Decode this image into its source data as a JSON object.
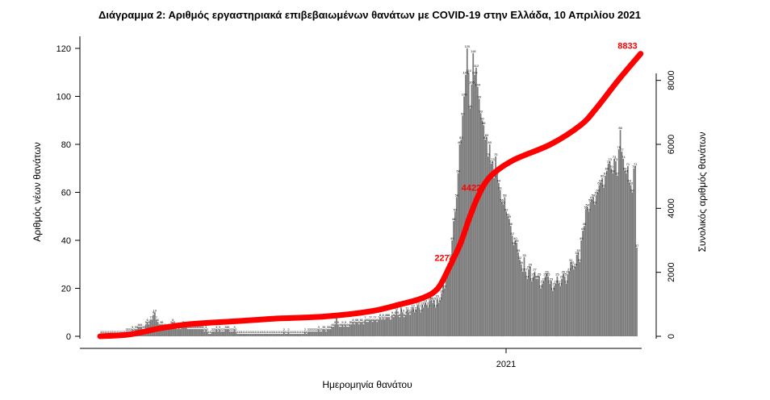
{
  "chart_data": {
    "type": "bar",
    "title": "Διάγραμμα 2: Αριθμός εργαστηριακά επιβεβαιωμένων θανάτων με COVID-19 στην Ελλάδα, 10 Απριλίου 2021",
    "xlabel": "Ημερομηνία θανάτου",
    "ylabel_left": "Αριθμός νέων θανάτων",
    "ylabel_right": "Συνολικός αριθμός θανάτων",
    "x_tick_labels": [
      "2021"
    ],
    "left_axis": {
      "ylim": [
        0,
        120
      ],
      "ticks": [
        0,
        20,
        40,
        60,
        80,
        100,
        120
      ]
    },
    "right_axis": {
      "ylim": [
        0,
        9000
      ],
      "ticks": [
        0,
        2000,
        4000,
        6000,
        8000
      ]
    },
    "series": [
      {
        "name": "",
        "type": "bar",
        "color": "#7a7a7a",
        "start_date": "2020-03-11",
        "values": [
          1,
          1,
          1,
          1,
          1,
          1,
          1,
          1,
          1,
          1,
          1,
          1,
          1,
          1,
          1,
          1,
          1,
          2,
          2,
          2,
          2,
          3,
          2,
          3,
          3,
          4,
          4,
          4,
          3,
          3,
          5,
          6,
          5,
          7,
          7,
          9,
          10,
          7,
          6,
          4,
          5,
          5,
          4,
          4,
          3,
          4,
          4,
          5,
          6,
          5,
          4,
          3,
          4,
          3,
          4,
          5,
          4,
          4,
          3,
          3,
          3,
          3,
          3,
          3,
          3,
          3,
          3,
          3,
          3,
          2,
          3,
          2,
          1,
          1,
          2,
          2,
          2,
          3,
          2,
          3,
          2,
          2,
          2,
          3,
          3,
          3,
          2,
          2,
          2,
          3,
          2,
          1,
          1,
          1,
          1,
          1,
          1,
          1,
          1,
          1,
          1,
          1,
          1,
          1,
          1,
          1,
          1,
          1,
          1,
          1,
          1,
          1,
          1,
          1,
          1,
          1,
          1,
          1,
          1,
          1,
          1,
          1,
          2,
          1,
          1,
          2,
          1,
          1,
          1,
          1,
          1,
          1,
          1,
          1,
          1,
          1,
          2,
          1,
          2,
          2,
          2,
          2,
          2,
          2,
          2,
          3,
          2,
          2,
          3,
          3,
          2,
          3,
          3,
          3,
          4,
          4,
          5,
          8,
          5,
          4,
          4,
          5,
          4,
          5,
          4,
          4,
          5,
          5,
          6,
          5,
          6,
          6,
          5,
          6,
          6,
          5,
          7,
          6,
          6,
          7,
          7,
          6,
          7,
          7,
          6,
          7,
          8,
          7,
          8,
          7,
          8,
          8,
          8,
          7,
          9,
          8,
          9,
          11,
          9,
          8,
          12,
          10,
          8,
          9,
          11,
          10,
          9,
          11,
          12,
          10,
          11,
          13,
          12,
          10,
          13,
          12,
          14,
          13,
          12,
          15,
          15,
          14,
          15,
          12,
          16,
          14,
          15,
          18,
          22,
          20,
          24,
          27,
          29,
          33,
          40,
          48,
          52,
          58,
          68,
          80,
          82,
          92,
          100,
          109,
          120,
          110,
          95,
          105,
          118,
          109,
          112,
          104,
          99,
          93,
          90,
          88,
          82,
          83,
          75,
          80,
          72,
          73,
          66,
          75,
          68,
          64,
          61,
          56,
          55,
          58,
          52,
          50,
          49,
          46,
          42,
          38,
          40,
          39,
          35,
          32,
          30,
          27,
          33,
          27,
          24,
          28,
          29,
          23,
          25,
          27,
          24,
          24,
          25,
          20,
          22,
          23,
          25,
          26,
          25,
          22,
          23,
          19,
          21,
          22,
          25,
          22,
          21,
          24,
          26,
          25,
          22,
          26,
          27,
          31,
          30,
          28,
          29,
          34,
          35,
          31,
          40,
          44,
          46,
          53,
          54,
          52,
          56,
          57,
          58,
          55,
          59,
          60,
          63,
          64,
          66,
          62,
          67,
          69,
          72,
          73,
          70,
          68,
          74,
          73,
          67,
          78,
          86,
          77,
          74,
          69,
          68,
          71,
          64,
          63,
          60,
          70,
          71,
          37
        ]
      },
      {
        "name": "",
        "type": "line",
        "axis": "right",
        "color": "#ff0000",
        "points": [
          [
            0,
            0
          ],
          [
            20,
            60
          ],
          [
            40,
            250
          ],
          [
            60,
            380
          ],
          [
            90,
            470
          ],
          [
            120,
            560
          ],
          [
            150,
            620
          ],
          [
            180,
            780
          ],
          [
            200,
            1000
          ],
          [
            215,
            1200
          ],
          [
            225,
            1500
          ],
          [
            233,
            2200
          ],
          [
            240,
            2900
          ],
          [
            246,
            3700
          ],
          [
            252,
            4400
          ],
          [
            260,
            5000
          ],
          [
            275,
            5500
          ],
          [
            300,
            6000
          ],
          [
            320,
            6600
          ],
          [
            330,
            7100
          ],
          [
            345,
            8000
          ],
          [
            360,
            8833
          ]
        ],
        "point_labels": [
          {
            "x": 238,
            "y": 2200,
            "text": "2274"
          },
          {
            "x": 256,
            "y": 4400,
            "text": "4422"
          },
          {
            "x": 360,
            "y": 8833,
            "text": "8833"
          }
        ]
      }
    ],
    "grid": false,
    "legend": "none"
  }
}
